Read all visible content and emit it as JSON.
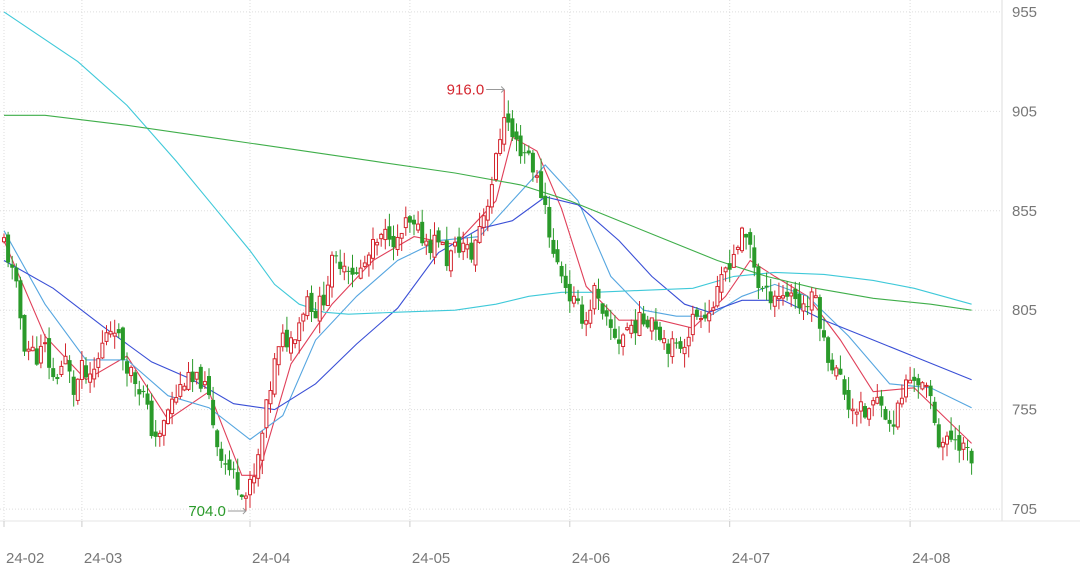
{
  "chart_data": {
    "type": "candlestick",
    "y_ticks": [
      "955",
      "905",
      "855",
      "805",
      "755",
      "705"
    ],
    "y_tick_values": [
      955,
      905,
      855,
      805,
      755,
      705
    ],
    "ylim": [
      699,
      961
    ],
    "x_ticks": [
      "24-02",
      "24-03",
      "24-04",
      "24-05",
      "24-06",
      "24-07",
      "24-08"
    ],
    "x_tick_index": [
      0,
      19,
      60,
      99,
      138,
      177,
      221
    ],
    "n_bars": 237,
    "grid": true,
    "up_color": "#d4262f",
    "down_color": "#2a9a2a",
    "annotations": [
      {
        "text": "916.0",
        "index": 122,
        "value": 916.0,
        "kind": "high",
        "color": "#d4262f"
      },
      {
        "text": "704.0",
        "index": 59,
        "value": 704.0,
        "kind": "low",
        "color": "#2a9a2a"
      }
    ],
    "closes": [
      [
        0,
        840
      ],
      [
        3,
        815
      ],
      [
        5,
        788
      ],
      [
        8,
        782
      ],
      [
        10,
        786
      ],
      [
        12,
        770
      ],
      [
        15,
        780
      ],
      [
        17,
        764
      ],
      [
        19,
        775
      ],
      [
        21,
        768
      ],
      [
        23,
        780
      ],
      [
        25,
        795
      ],
      [
        27,
        798
      ],
      [
        29,
        782
      ],
      [
        31,
        774
      ],
      [
        34,
        762
      ],
      [
        36,
        745
      ],
      [
        38,
        740
      ],
      [
        40,
        755
      ],
      [
        42,
        762
      ],
      [
        44,
        770
      ],
      [
        46,
        768
      ],
      [
        48,
        770
      ],
      [
        50,
        760
      ],
      [
        52,
        738
      ],
      [
        54,
        728
      ],
      [
        56,
        722
      ],
      [
        58,
        716
      ],
      [
        59,
        712
      ],
      [
        61,
        720
      ],
      [
        62,
        730
      ],
      [
        64,
        755
      ],
      [
        66,
        778
      ],
      [
        68,
        790
      ],
      [
        70,
        790
      ],
      [
        72,
        800
      ],
      [
        74,
        812
      ],
      [
        76,
        804
      ],
      [
        78,
        812
      ],
      [
        80,
        828
      ],
      [
        82,
        830
      ],
      [
        84,
        828
      ],
      [
        86,
        822
      ],
      [
        88,
        828
      ],
      [
        90,
        836
      ],
      [
        92,
        840
      ],
      [
        94,
        845
      ],
      [
        96,
        838
      ],
      [
        98,
        848
      ],
      [
        100,
        845
      ],
      [
        102,
        842
      ],
      [
        104,
        838
      ],
      [
        106,
        842
      ],
      [
        108,
        830
      ],
      [
        110,
        836
      ],
      [
        112,
        838
      ],
      [
        114,
        832
      ],
      [
        116,
        848
      ],
      [
        118,
        860
      ],
      [
        120,
        880
      ],
      [
        122,
        905
      ],
      [
        124,
        892
      ],
      [
        126,
        886
      ],
      [
        128,
        884
      ],
      [
        130,
        870
      ],
      [
        132,
        858
      ],
      [
        134,
        832
      ],
      [
        136,
        824
      ],
      [
        138,
        812
      ],
      [
        140,
        805
      ],
      [
        142,
        800
      ],
      [
        144,
        815
      ],
      [
        146,
        800
      ],
      [
        148,
        795
      ],
      [
        150,
        790
      ],
      [
        152,
        796
      ],
      [
        154,
        798
      ],
      [
        156,
        800
      ],
      [
        158,
        802
      ],
      [
        160,
        794
      ],
      [
        162,
        788
      ],
      [
        164,
        785
      ],
      [
        166,
        790
      ],
      [
        168,
        800
      ],
      [
        170,
        805
      ],
      [
        172,
        804
      ],
      [
        174,
        812
      ],
      [
        176,
        826
      ],
      [
        178,
        834
      ],
      [
        180,
        842
      ],
      [
        182,
        838
      ],
      [
        184,
        818
      ],
      [
        186,
        812
      ],
      [
        188,
        814
      ],
      [
        190,
        812
      ],
      [
        192,
        815
      ],
      [
        194,
        808
      ],
      [
        196,
        808
      ],
      [
        198,
        812
      ],
      [
        200,
        788
      ],
      [
        202,
        778
      ],
      [
        204,
        770
      ],
      [
        206,
        758
      ],
      [
        208,
        756
      ],
      [
        210,
        752
      ],
      [
        212,
        757
      ],
      [
        214,
        762
      ],
      [
        216,
        745
      ],
      [
        218,
        755
      ],
      [
        220,
        768
      ],
      [
        222,
        772
      ],
      [
        224,
        766
      ],
      [
        226,
        760
      ],
      [
        228,
        740
      ],
      [
        230,
        738
      ],
      [
        232,
        742
      ],
      [
        234,
        736
      ],
      [
        236,
        728
      ]
    ],
    "ma_lines": [
      {
        "color": "#e0405a",
        "points": [
          [
            0,
            840
          ],
          [
            10,
            792
          ],
          [
            20,
            770
          ],
          [
            30,
            782
          ],
          [
            40,
            750
          ],
          [
            50,
            764
          ],
          [
            58,
            722
          ],
          [
            62,
            722
          ],
          [
            70,
            778
          ],
          [
            80,
            808
          ],
          [
            90,
            830
          ],
          [
            100,
            842
          ],
          [
            110,
            838
          ],
          [
            120,
            860
          ],
          [
            124,
            892
          ],
          [
            130,
            885
          ],
          [
            136,
            856
          ],
          [
            142,
            817
          ],
          [
            150,
            800
          ],
          [
            160,
            800
          ],
          [
            168,
            796
          ],
          [
            176,
            812
          ],
          [
            182,
            830
          ],
          [
            188,
            822
          ],
          [
            196,
            812
          ],
          [
            204,
            790
          ],
          [
            212,
            764
          ],
          [
            222,
            766
          ],
          [
            230,
            750
          ],
          [
            236,
            738
          ]
        ]
      },
      {
        "color": "#56a6e0",
        "points": [
          [
            0,
            845
          ],
          [
            10,
            808
          ],
          [
            20,
            780
          ],
          [
            30,
            780
          ],
          [
            40,
            762
          ],
          [
            50,
            756
          ],
          [
            60,
            740
          ],
          [
            68,
            752
          ],
          [
            76,
            790
          ],
          [
            86,
            812
          ],
          [
            96,
            830
          ],
          [
            106,
            840
          ],
          [
            116,
            842
          ],
          [
            124,
            860
          ],
          [
            132,
            878
          ],
          [
            140,
            860
          ],
          [
            148,
            822
          ],
          [
            156,
            805
          ],
          [
            164,
            802
          ],
          [
            172,
            802
          ],
          [
            180,
            812
          ],
          [
            188,
            818
          ],
          [
            196,
            812
          ],
          [
            206,
            792
          ],
          [
            216,
            768
          ],
          [
            226,
            766
          ],
          [
            236,
            756
          ]
        ]
      },
      {
        "color": "#3a4fd6",
        "points": [
          [
            0,
            830
          ],
          [
            12,
            816
          ],
          [
            24,
            797
          ],
          [
            36,
            779
          ],
          [
            46,
            770
          ],
          [
            56,
            758
          ],
          [
            66,
            755
          ],
          [
            76,
            768
          ],
          [
            86,
            788
          ],
          [
            96,
            806
          ],
          [
            106,
            834
          ],
          [
            116,
            846
          ],
          [
            124,
            850
          ],
          [
            132,
            862
          ],
          [
            140,
            858
          ],
          [
            150,
            840
          ],
          [
            158,
            822
          ],
          [
            166,
            808
          ],
          [
            172,
            804
          ],
          [
            180,
            810
          ],
          [
            190,
            810
          ],
          [
            200,
            800
          ],
          [
            212,
            790
          ],
          [
            224,
            780
          ],
          [
            236,
            770
          ]
        ]
      },
      {
        "color": "#3fc9d9",
        "points": [
          [
            0,
            955
          ],
          [
            18,
            930
          ],
          [
            30,
            908
          ],
          [
            42,
            880
          ],
          [
            52,
            855
          ],
          [
            60,
            835
          ],
          [
            66,
            818
          ],
          [
            72,
            808
          ],
          [
            78,
            804
          ],
          [
            84,
            803
          ],
          [
            96,
            804
          ],
          [
            110,
            805
          ],
          [
            120,
            808
          ],
          [
            128,
            812
          ],
          [
            136,
            814
          ],
          [
            144,
            814
          ],
          [
            156,
            815
          ],
          [
            168,
            816
          ],
          [
            178,
            822
          ],
          [
            188,
            824
          ],
          [
            200,
            823
          ],
          [
            212,
            820
          ],
          [
            222,
            816
          ],
          [
            236,
            808
          ]
        ]
      },
      {
        "color": "#3fae4a",
        "points": [
          [
            0,
            903
          ],
          [
            10,
            903
          ],
          [
            30,
            898
          ],
          [
            50,
            892
          ],
          [
            70,
            886
          ],
          [
            90,
            880
          ],
          [
            110,
            874
          ],
          [
            126,
            868
          ],
          [
            138,
            860
          ],
          [
            150,
            850
          ],
          [
            162,
            840
          ],
          [
            174,
            830
          ],
          [
            186,
            822
          ],
          [
            198,
            816
          ],
          [
            212,
            811
          ],
          [
            226,
            808
          ],
          [
            236,
            805
          ]
        ]
      }
    ]
  }
}
